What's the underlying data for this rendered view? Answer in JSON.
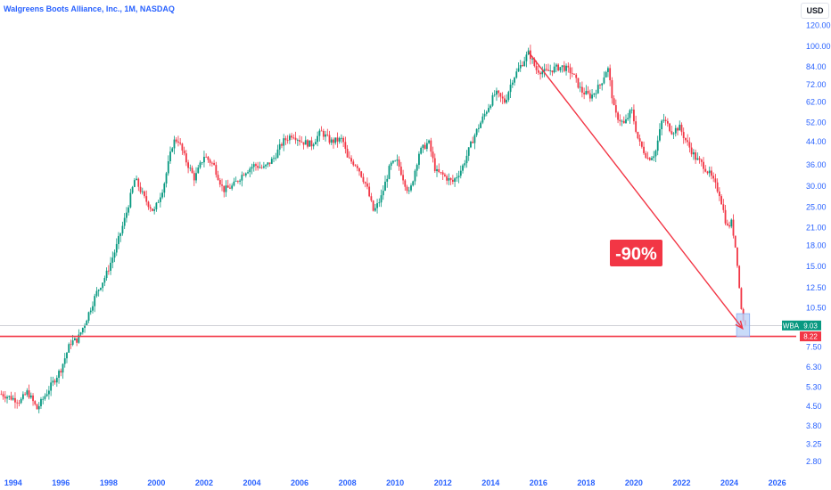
{
  "chart_data": {
    "type": "candlestick",
    "title": "Walgreens Boots Alliance, Inc., 1M, NASDAQ",
    "currency": "USD",
    "y_scale": "log",
    "ylim": [
      2.55,
      130
    ],
    "xlim": [
      1993.45,
      2026.8
    ],
    "y_ticks": [
      "120.00",
      "100.00",
      "84.00",
      "72.00",
      "62.00",
      "52.00",
      "44.00",
      "36.00",
      "30.00",
      "25.00",
      "21.00",
      "18.00",
      "15.00",
      "12.50",
      "10.50",
      "7.50",
      "6.30",
      "5.30",
      "4.50",
      "3.80",
      "3.25",
      "2.80"
    ],
    "x_ticks": [
      "1994",
      "1996",
      "1998",
      "2000",
      "2002",
      "2004",
      "2006",
      "2008",
      "2010",
      "2012",
      "2014",
      "2016",
      "2018",
      "2020",
      "2022",
      "2024",
      "2026"
    ],
    "colors": {
      "up": "#089981",
      "down": "#f23645",
      "accent": "#2962ff",
      "line": "#f23645",
      "highlight": "#bbd2f7"
    },
    "current_price": {
      "symbol": "WBA",
      "value": "9.03",
      "y": 9.03
    },
    "support_line": {
      "value": "8.22",
      "y": 8.22
    },
    "annotation": {
      "text": "-90%",
      "from": {
        "x": 2015.6,
        "y": 95
      },
      "to": {
        "x": 2024.55,
        "y": 8.8
      }
    },
    "highlight_box": {
      "x_from": 2024.3,
      "x_to": 2024.85,
      "y_from": 8.2,
      "y_to": 10.0
    },
    "price_path": [
      [
        1993.5,
        5.0
      ],
      [
        1994.3,
        4.7
      ],
      [
        1994.6,
        5.1
      ],
      [
        1995.0,
        4.4
      ],
      [
        1995.6,
        5.4
      ],
      [
        1996.0,
        6.2
      ],
      [
        1996.4,
        7.8
      ],
      [
        1996.7,
        8.0
      ],
      [
        1997.0,
        9.2
      ],
      [
        1997.5,
        12.0
      ],
      [
        1997.9,
        14.0
      ],
      [
        1998.3,
        17.5
      ],
      [
        1998.7,
        23.0
      ],
      [
        1999.1,
        32.0
      ],
      [
        1999.5,
        27.0
      ],
      [
        1999.9,
        24.0
      ],
      [
        2000.3,
        30.0
      ],
      [
        2000.7,
        44.0
      ],
      [
        2000.9,
        45.0
      ],
      [
        2001.2,
        38.0
      ],
      [
        2001.6,
        32.0
      ],
      [
        2002.0,
        39.0
      ],
      [
        2002.4,
        36.0
      ],
      [
        2002.8,
        29.0
      ],
      [
        2003.2,
        30.0
      ],
      [
        2003.7,
        34.0
      ],
      [
        2004.1,
        36.0
      ],
      [
        2004.5,
        35.0
      ],
      [
        2004.9,
        38.0
      ],
      [
        2005.3,
        44.0
      ],
      [
        2005.7,
        47.0
      ],
      [
        2006.1,
        44.0
      ],
      [
        2006.5,
        43.0
      ],
      [
        2006.9,
        48.0
      ],
      [
        2007.3,
        44.0
      ],
      [
        2007.8,
        45.0
      ],
      [
        2008.0,
        38.0
      ],
      [
        2008.4,
        36.0
      ],
      [
        2008.8,
        30.0
      ],
      [
        2009.1,
        24.0
      ],
      [
        2009.4,
        27.0
      ],
      [
        2009.8,
        36.0
      ],
      [
        2010.1,
        37.0
      ],
      [
        2010.4,
        31.0
      ],
      [
        2010.6,
        28.0
      ],
      [
        2011.0,
        40.0
      ],
      [
        2011.4,
        44.0
      ],
      [
        2011.7,
        34.0
      ],
      [
        2012.0,
        33.0
      ],
      [
        2012.4,
        31.0
      ],
      [
        2012.8,
        35.0
      ],
      [
        2013.3,
        46.0
      ],
      [
        2013.8,
        57.0
      ],
      [
        2014.2,
        67.0
      ],
      [
        2014.6,
        62.0
      ],
      [
        2014.9,
        75.0
      ],
      [
        2015.3,
        86.0
      ],
      [
        2015.6,
        95.0
      ],
      [
        2015.9,
        82.0
      ],
      [
        2016.3,
        80.0
      ],
      [
        2016.7,
        83.0
      ],
      [
        2017.0,
        84.0
      ],
      [
        2017.4,
        80.0
      ],
      [
        2017.8,
        68.0
      ],
      [
        2018.2,
        65.0
      ],
      [
        2018.6,
        72.0
      ],
      [
        2018.9,
        84.0
      ],
      [
        2019.2,
        56.0
      ],
      [
        2019.6,
        51.0
      ],
      [
        2019.9,
        58.0
      ],
      [
        2020.2,
        44.0
      ],
      [
        2020.6,
        38.0
      ],
      [
        2020.9,
        40.0
      ],
      [
        2021.2,
        54.0
      ],
      [
        2021.6,
        48.0
      ],
      [
        2021.9,
        50.0
      ],
      [
        2022.2,
        44.0
      ],
      [
        2022.6,
        38.0
      ],
      [
        2022.9,
        36.0
      ],
      [
        2023.2,
        33.0
      ],
      [
        2023.6,
        28.0
      ],
      [
        2023.9,
        21.0
      ],
      [
        2024.1,
        22.0
      ],
      [
        2024.3,
        16.5
      ],
      [
        2024.45,
        11.5
      ],
      [
        2024.55,
        9.5
      ],
      [
        2024.7,
        9.03
      ]
    ]
  }
}
